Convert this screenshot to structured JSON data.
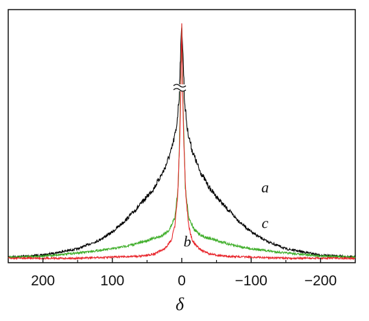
{
  "chart_data": {
    "type": "line",
    "xlabel": "δ",
    "ylabel": "",
    "title": "",
    "x_reversed": true,
    "xlim": [
      250,
      -250
    ],
    "x_ticks": [
      200,
      100,
      0,
      -100,
      -200
    ],
    "x_tick_labels": [
      "200",
      "100",
      "0",
      "−100",
      "−200"
    ],
    "y_axis_break": true,
    "y_ticks_shown": false,
    "grid": false,
    "legend": "none",
    "series": [
      {
        "name": "a",
        "color": "#000000",
        "x": [
          250,
          200,
          150,
          120,
          100,
          80,
          60,
          40,
          25,
          15,
          8,
          4,
          0,
          -4,
          -8,
          -15,
          -25,
          -40,
          -60,
          -80,
          -100,
          -120,
          -150,
          -200,
          -250
        ],
        "y": [
          0.01,
          0.02,
          0.05,
          0.09,
          0.13,
          0.19,
          0.26,
          0.34,
          0.43,
          0.52,
          0.62,
          0.76,
          1.0,
          0.76,
          0.62,
          0.52,
          0.43,
          0.34,
          0.26,
          0.19,
          0.13,
          0.09,
          0.05,
          0.02,
          0.01
        ]
      },
      {
        "name": "b",
        "color": "#e8262c",
        "x": [
          250,
          150,
          100,
          60,
          40,
          25,
          15,
          10,
          6,
          3,
          0,
          -3,
          -6,
          -10,
          -15,
          -25,
          -40,
          -60,
          -100,
          -150,
          -250
        ],
        "y": [
          0.005,
          0.005,
          0.01,
          0.015,
          0.025,
          0.05,
          0.09,
          0.16,
          0.3,
          0.55,
          1.0,
          0.55,
          0.3,
          0.16,
          0.09,
          0.05,
          0.025,
          0.015,
          0.01,
          0.005,
          0.005
        ]
      },
      {
        "name": "c",
        "color": "#3fae2a",
        "x": [
          250,
          200,
          150,
          100,
          70,
          50,
          30,
          18,
          10,
          5,
          0,
          -5,
          -10,
          -18,
          -30,
          -50,
          -70,
          -100,
          -150,
          -200,
          -250
        ],
        "y": [
          0.01,
          0.015,
          0.03,
          0.05,
          0.07,
          0.09,
          0.11,
          0.14,
          0.2,
          0.35,
          1.0,
          0.35,
          0.2,
          0.14,
          0.11,
          0.09,
          0.07,
          0.05,
          0.03,
          0.015,
          0.01
        ]
      }
    ],
    "annotations": [
      {
        "text": "a",
        "x": -120,
        "y": 0.32
      },
      {
        "text": "c",
        "x": -120,
        "y": 0.15
      },
      {
        "text": "b",
        "x": -8,
        "y": 0.06
      }
    ]
  }
}
